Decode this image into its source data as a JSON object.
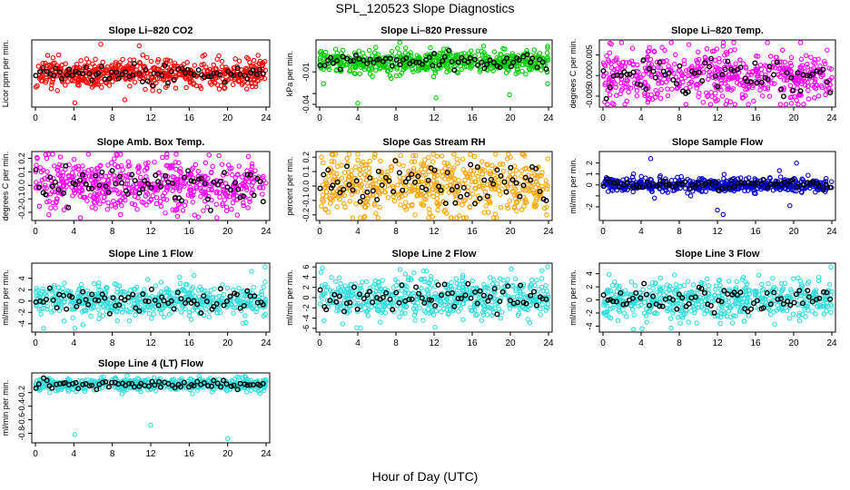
{
  "figure": {
    "title": "SPL_120523  Slope Diagnostics",
    "xlabel": "Hour of Day (UTC)"
  },
  "chart_data": [
    {
      "type": "scatter",
      "title": "Slope Li–820 CO2",
      "ylabel": "Licor ppm per min.",
      "xlim": [
        0,
        24
      ],
      "ylim": [
        -1.0,
        1.0
      ],
      "xticks": [
        0,
        4,
        8,
        12,
        16,
        20,
        24
      ],
      "yticks": [],
      "color": "#ff0000",
      "center": 0.0,
      "spread": 0.22,
      "outliers": [
        [
          4.1,
          -0.95
        ],
        [
          9.3,
          -0.85
        ],
        [
          10.8,
          0.9
        ],
        [
          6.8,
          0.95
        ],
        [
          12.2,
          -0.55
        ],
        [
          17.6,
          0.6
        ],
        [
          22.0,
          -0.5
        ]
      ]
    },
    {
      "type": "scatter",
      "title": "Slope Li–820 Pressure",
      "ylabel": "kPa per min.",
      "xlim": [
        0,
        24
      ],
      "ylim": [
        -0.04,
        0.017
      ],
      "xticks": [
        0,
        4,
        8,
        12,
        16,
        20,
        24
      ],
      "yticks": [
        -0.04,
        -0.03,
        -0.01
      ],
      "ytick_labels": [
        "-0.04",
        "",
        "-0.01"
      ],
      "color": "#00cc00",
      "center": -0.001,
      "spread": 0.005,
      "outliers": [
        [
          4.0,
          -0.039
        ],
        [
          12.2,
          -0.034
        ],
        [
          19.9,
          -0.031
        ],
        [
          0.4,
          -0.021
        ],
        [
          23.9,
          -0.021
        ],
        [
          7.5,
          -0.016
        ],
        [
          23.9,
          0.012
        ],
        [
          13.0,
          0.011
        ]
      ]
    },
    {
      "type": "scatter",
      "title": "Slope Li–820 Temp.",
      "ylabel": "degrees C per min.",
      "xlim": [
        0,
        24
      ],
      "ylim": [
        -0.007,
        0.008
      ],
      "xticks": [
        0,
        4,
        8,
        12,
        16,
        20,
        24
      ],
      "yticks": [
        -0.005,
        0.0,
        0.005
      ],
      "ytick_labels": [
        "-0.005",
        "0.000",
        "0.005"
      ],
      "color": "#ff00ff",
      "center": 0.0,
      "spread": 0.0032,
      "outliers": [
        [
          6.2,
          0.0068
        ],
        [
          2.5,
          -0.0062
        ],
        [
          10.5,
          -0.0065
        ],
        [
          15.8,
          -0.0062
        ],
        [
          20.3,
          -0.006
        ],
        [
          23.5,
          0.0062
        ]
      ]
    },
    {
      "type": "scatter",
      "title": "Slope Amb. Box Temp.",
      "ylabel": "degrees C per min.",
      "xlim": [
        0,
        24
      ],
      "ylim": [
        -0.24,
        0.23
      ],
      "xticks": [
        0,
        4,
        8,
        12,
        16,
        20,
        24
      ],
      "yticks": [
        -0.2,
        -0.1,
        0.0,
        0.1,
        0.2
      ],
      "ytick_labels": [
        "-0.2",
        "-0.1",
        "0.0",
        "0.1",
        "0.2"
      ],
      "color": "#ff00ff",
      "center": 0.0,
      "spread": 0.1,
      "outliers": [
        [
          14.8,
          -0.23
        ],
        [
          0.2,
          0.2
        ],
        [
          2.6,
          0.21
        ],
        [
          19.1,
          0.22
        ],
        [
          21.0,
          -0.22
        ]
      ]
    },
    {
      "type": "scatter",
      "title": "Slope Gas Stream RH",
      "ylabel": "percent per min.",
      "xlim": [
        0,
        24
      ],
      "ylim": [
        -0.22,
        0.22
      ],
      "xticks": [
        0,
        4,
        8,
        12,
        16,
        20,
        24
      ],
      "yticks": [
        -0.2,
        -0.1,
        0.0,
        0.1,
        0.2
      ],
      "ytick_labels": [
        "-0.2",
        "-0.1",
        "0.0",
        "0.1",
        "0.2"
      ],
      "color": "#ffa500",
      "center": 0.0,
      "spread": 0.1,
      "outliers": [
        [
          0.2,
          0.2
        ],
        [
          9.8,
          0.21
        ],
        [
          10.0,
          -0.2
        ],
        [
          20.0,
          0.2
        ],
        [
          23.8,
          -0.2
        ],
        [
          5.9,
          -0.19
        ]
      ]
    },
    {
      "type": "scatter",
      "title": "Slope Sample Flow",
      "ylabel": "ml/min per min.",
      "xlim": [
        0,
        24
      ],
      "ylim": [
        -3.0,
        2.8
      ],
      "xticks": [
        0,
        4,
        8,
        12,
        16,
        20,
        24
      ],
      "yticks": [
        -2,
        -1,
        0,
        1,
        2
      ],
      "ytick_labels": [
        "-2",
        "",
        "0",
        "1",
        "2"
      ],
      "color": "#0000cc",
      "center": 0.0,
      "spread": 0.3,
      "outliers": [
        [
          5.0,
          2.4
        ],
        [
          12.6,
          -2.7
        ],
        [
          12.0,
          -2.3
        ],
        [
          20.3,
          2.0
        ],
        [
          19.6,
          -1.9
        ],
        [
          5.4,
          -1.2
        ],
        [
          18.5,
          1.3
        ],
        [
          3.2,
          1.0
        ],
        [
          9.2,
          -1.0
        ]
      ]
    },
    {
      "type": "scatter",
      "title": "Slope Line 1 Flow",
      "ylabel": "ml/min per min.",
      "xlim": [
        0,
        24
      ],
      "ylim": [
        -5.0,
        6.2
      ],
      "xticks": [
        0,
        4,
        8,
        12,
        16,
        20,
        24
      ],
      "yticks": [
        -4,
        -2,
        0,
        2,
        4
      ],
      "ytick_labels": [
        "-4",
        "-2",
        "0",
        "2",
        "4"
      ],
      "color": "#33dddd",
      "center": 0.0,
      "spread": 1.4,
      "outliers": [
        [
          4.1,
          -4.8
        ],
        [
          23.9,
          6.0
        ],
        [
          15.0,
          4.2
        ],
        [
          16.5,
          4.5
        ],
        [
          21.9,
          -3.8
        ]
      ]
    },
    {
      "type": "scatter",
      "title": "Slope Line 2 Flow",
      "ylabel": "ml/min per min.",
      "xlim": [
        0,
        24
      ],
      "ylim": [
        -6.2,
        6.2
      ],
      "xticks": [
        0,
        4,
        8,
        12,
        16,
        20,
        24
      ],
      "yticks": [
        -6,
        -4,
        -2,
        0,
        2,
        4,
        6
      ],
      "ytick_labels": [
        "-6",
        "-4",
        "-2",
        "0",
        "2",
        "4",
        "6"
      ],
      "color": "#33dddd",
      "center": 0.0,
      "spread": 1.9,
      "outliers": [
        [
          0.3,
          5.8
        ],
        [
          3.9,
          -5.9
        ],
        [
          23.9,
          6.0
        ],
        [
          12.1,
          -5.8
        ],
        [
          20.1,
          5.6
        ],
        [
          11.2,
          5.2
        ]
      ]
    },
    {
      "type": "scatter",
      "title": "Slope Line 3 Flow",
      "ylabel": "ml/min per min.",
      "xlim": [
        0,
        24
      ],
      "ylim": [
        -4.5,
        5.2
      ],
      "xticks": [
        0,
        4,
        8,
        12,
        16,
        20,
        24
      ],
      "yticks": [
        -4,
        -2,
        0,
        2,
        4
      ],
      "ytick_labels": [
        "-4",
        "-2",
        "0",
        "2",
        "4"
      ],
      "color": "#33dddd",
      "center": 0.0,
      "spread": 1.4,
      "outliers": [
        [
          4.1,
          -4.4
        ],
        [
          23.9,
          5.0
        ],
        [
          7.5,
          3.8
        ],
        [
          18.0,
          -3.7
        ],
        [
          12.3,
          -3.6
        ]
      ]
    },
    {
      "type": "scatter",
      "title": "Slope Line 4 (LT) Flow",
      "ylabel": "ml/min per min.",
      "xlim": [
        0,
        24
      ],
      "ylim": [
        -0.9,
        0.05
      ],
      "xticks": [
        0,
        4,
        8,
        12,
        16,
        20,
        24
      ],
      "yticks": [
        -0.8,
        -0.6,
        -0.4,
        -0.2
      ],
      "ytick_labels": [
        "-0.8",
        "-0.6",
        "-0.4",
        "-0.2"
      ],
      "color": "#33dddd",
      "center": -0.08,
      "spread": 0.045,
      "outliers": [
        [
          4.1,
          -0.82
        ],
        [
          12.0,
          -0.68
        ],
        [
          20.0,
          -0.88
        ],
        [
          1.5,
          -0.2
        ],
        [
          9.0,
          -0.22
        ]
      ]
    }
  ]
}
